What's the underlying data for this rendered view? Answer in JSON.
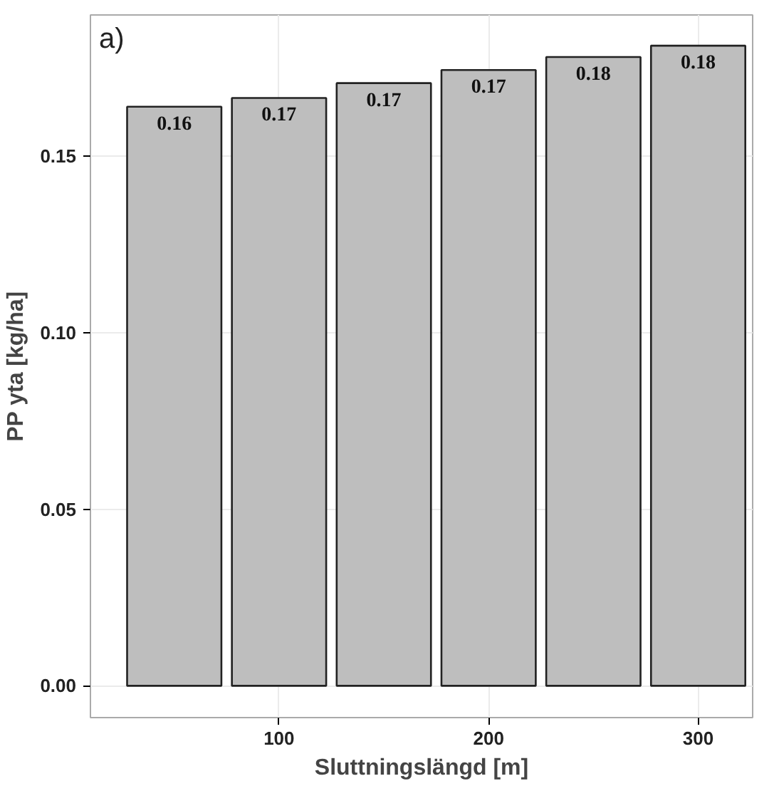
{
  "chart_data": {
    "type": "bar",
    "xlabel": "Sluttningslängd [m]",
    "ylabel": "PP yta [kg/ha]",
    "annotations": [
      "a)"
    ],
    "x": [
      50,
      100,
      150,
      200,
      250,
      300
    ],
    "values": [
      0.164,
      0.1665,
      0.1707,
      0.1744,
      0.1781,
      0.1813
    ],
    "value_labels": [
      "0.16",
      "0.17",
      "0.17",
      "0.17",
      "0.18",
      "0.18"
    ],
    "color": "#bebebe",
    "xlim": [
      10,
      326
    ],
    "xticks": [
      100,
      200,
      300
    ],
    "ylim": [
      -0.009,
      0.19
    ],
    "yticks": [
      {
        "value": 0,
        "label": "0.00"
      },
      {
        "value": 0.05,
        "label": "0.05"
      },
      {
        "value": 0.1,
        "label": "0.10"
      },
      {
        "value": 0.15,
        "label": "0.15"
      }
    ],
    "grid": true
  }
}
